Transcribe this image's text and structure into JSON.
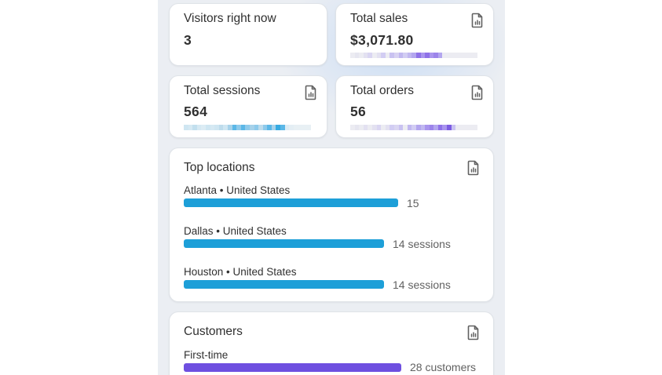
{
  "colors": {
    "location_bar": "#1d9fd8",
    "customer_bar": "#6e4fe0",
    "sessions_spark": [
      "#d6e6f0",
      "#c8e0ee",
      "#bedcec",
      "#a6d2ea",
      "#8ecaeb",
      "#5bb7e7",
      "#35aae2"
    ],
    "sales_spark": [
      "#e9e9f2",
      "#dedcf2",
      "#d2cdf3",
      "#c1b8f0",
      "#a995ee",
      "#8f72e8",
      "#7c5ce2"
    ]
  },
  "visitors": {
    "title": "Visitors right now",
    "value": "3"
  },
  "sales": {
    "title": "Total sales",
    "value": "$3,071.80"
  },
  "sessions": {
    "title": "Total sessions",
    "value": "564"
  },
  "orders": {
    "title": "Total orders",
    "value": "56"
  },
  "top_locations": {
    "title": "Top locations",
    "items": [
      {
        "label": "Atlanta • United States",
        "value": "15"
      },
      {
        "label": "Dallas • United States",
        "value": "14 sessions"
      },
      {
        "label": "Houston • United States",
        "value": "14 sessions"
      }
    ]
  },
  "customers": {
    "title": "Customers",
    "items": [
      {
        "label": "First-time",
        "value": "28 customers"
      }
    ]
  },
  "icons": {
    "report": "report-document-icon"
  }
}
